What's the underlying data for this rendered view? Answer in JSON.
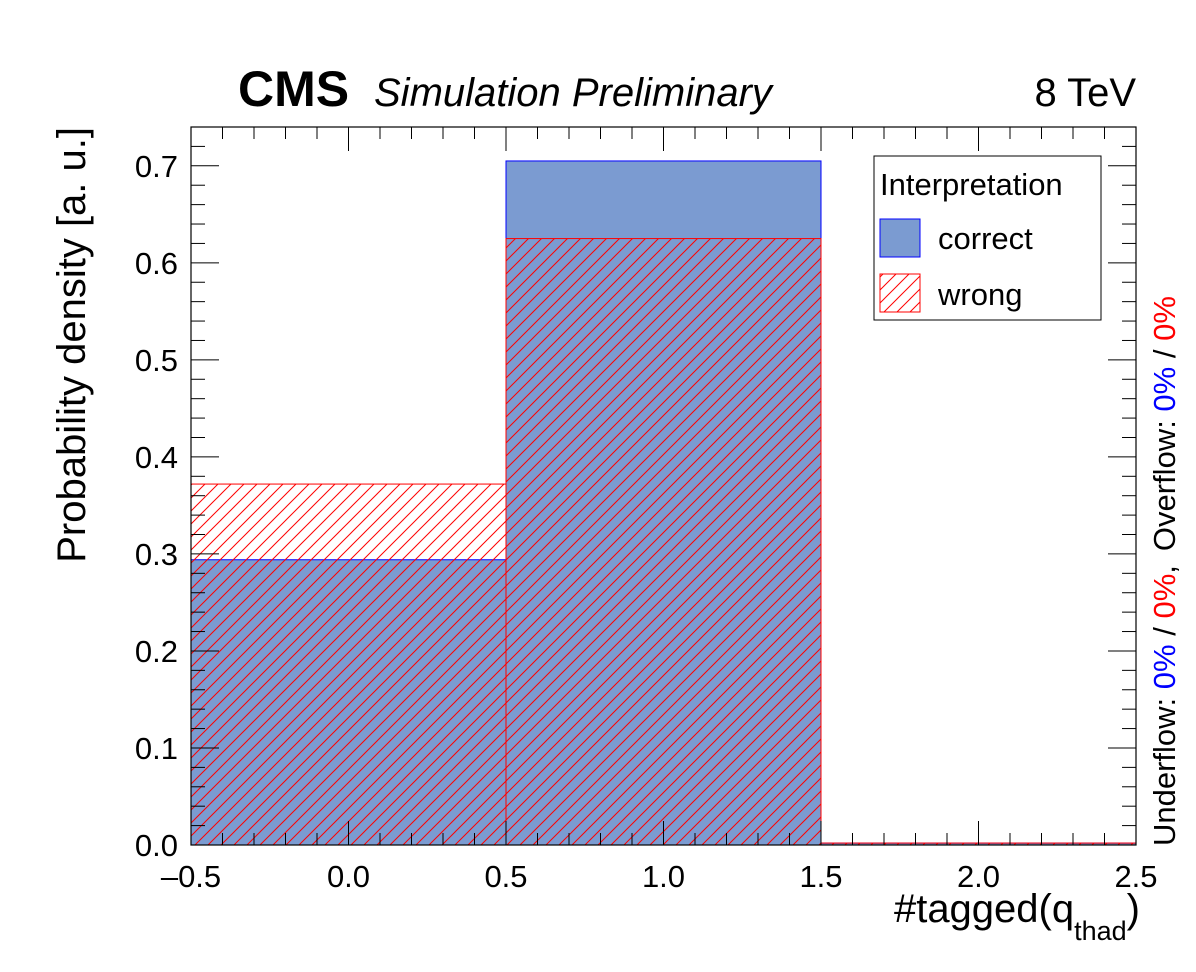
{
  "header": {
    "experiment": "CMS",
    "status": "Simulation Preliminary",
    "energy": "8 TeV"
  },
  "side_note": {
    "underflow_label": "Underflow: ",
    "overflow_label": "Overflow: ",
    "correct_value": "0%",
    "wrong_value": "0%",
    "separator": " / ",
    "comma": ","
  },
  "colors": {
    "correct_fill": "#7b9bd1",
    "correct_line": "#0000ff",
    "wrong_line": "#ff0000",
    "axis": "#000000"
  },
  "chart_data": {
    "type": "bar",
    "title": "",
    "xlabel_main": "#tagged(q",
    "xlabel_sub": "thad",
    "xlabel_end": ")",
    "ylabel": "Probability density [a. u.]",
    "xlim": [
      -0.5,
      2.5
    ],
    "ylim": [
      0.0,
      0.74
    ],
    "x_ticks": [
      "–0.5",
      "0.0",
      "0.5",
      "1.0",
      "1.5",
      "2.0",
      "2.5"
    ],
    "x_tick_values": [
      -0.5,
      0.0,
      0.5,
      1.0,
      1.5,
      2.0,
      2.5
    ],
    "y_ticks": [
      "0.0",
      "0.1",
      "0.2",
      "0.3",
      "0.4",
      "0.5",
      "0.6",
      "0.7"
    ],
    "y_tick_values": [
      0.0,
      0.1,
      0.2,
      0.3,
      0.4,
      0.5,
      0.6,
      0.7
    ],
    "bin_edges": [
      -0.5,
      0.5,
      1.5,
      2.5
    ],
    "series": [
      {
        "name": "correct",
        "style": "filled",
        "values": [
          0.294,
          0.705,
          0.002
        ]
      },
      {
        "name": "wrong",
        "style": "hatched",
        "values": [
          0.372,
          0.625,
          0.002
        ]
      }
    ],
    "legend": {
      "title": "Interpretation",
      "position": "top-right"
    },
    "grid": false
  }
}
